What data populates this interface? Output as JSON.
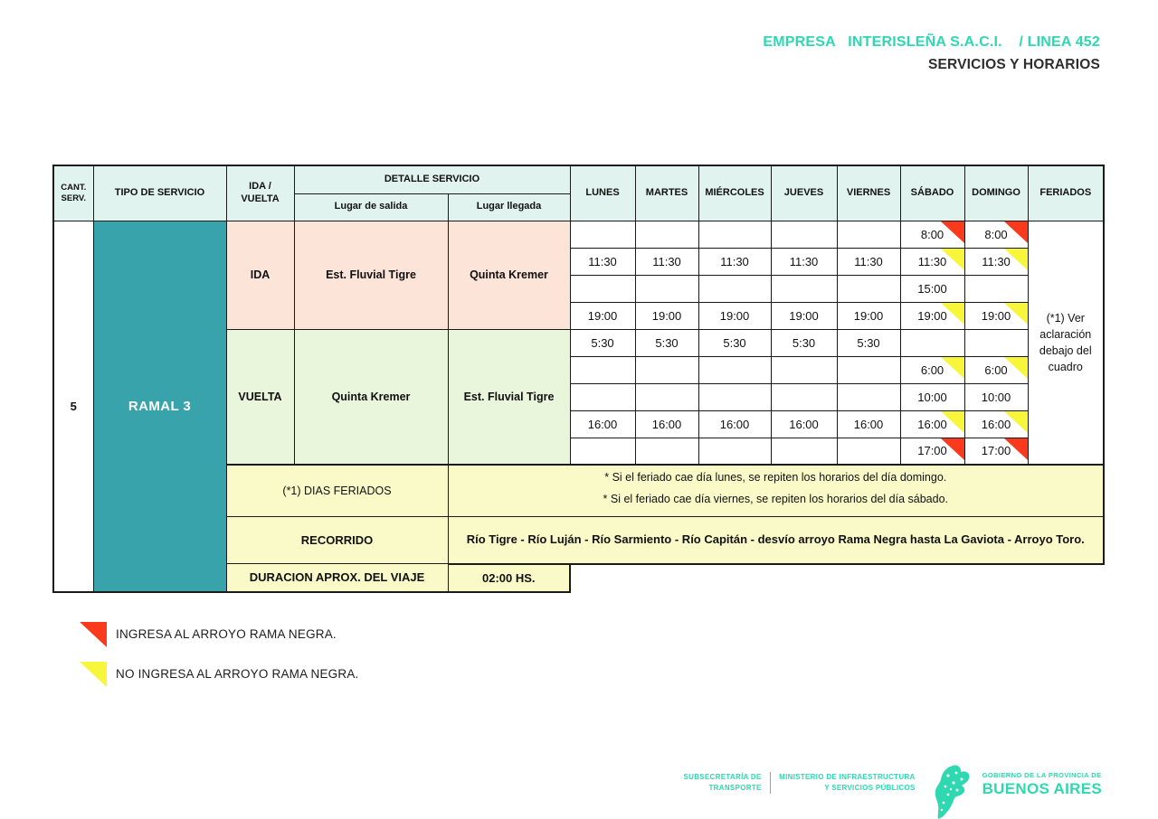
{
  "header": {
    "company_line": "EMPRESA   INTERISLEÑA S.A.C.I.    / LINEA 452",
    "subtitle": "SERVICIOS Y HORARIOS"
  },
  "colors": {
    "accent": "#2ed8b0",
    "teal_dark": "#38a3ab",
    "header_bg": "#e0f3ee",
    "ida_bg": "#fce4d8",
    "vuelta_bg": "#eaf6dc",
    "yellow_bg": "#fafac8",
    "red_flag": "#fb3a1d",
    "yellow_flag": "#f7f63a"
  },
  "table": {
    "headers": {
      "cant_line1": "CANT.",
      "cant_line2": "SERV.",
      "tipo_servicio": "TIPO DE SERVICIO",
      "ida_vuelta_line1": "IDA /",
      "ida_vuelta_line2": "VUELTA",
      "detalle_servicio": "DETALLE SERVICIO",
      "lugar_salida": "Lugar de salida",
      "lugar_llegada": "Lugar llegada",
      "days": [
        "LUNES",
        "MARTES",
        "MIÉRCOLES",
        "JUEVES",
        "VIERNES",
        "SÁBADO",
        "DOMINGO",
        "FERIADOS"
      ]
    },
    "cant_serv_value": "5",
    "ramal": "RAMAL 3",
    "ida": {
      "label": "IDA",
      "salida": "Est. Fluvial Tigre",
      "llegada": "Quinta Kremer",
      "rows": [
        {
          "times": [
            "",
            "",
            "",
            "",
            "",
            "8:00",
            "8:00"
          ],
          "flags": [
            "",
            "",
            "",
            "",
            "",
            "red",
            "red"
          ]
        },
        {
          "times": [
            "11:30",
            "11:30",
            "11:30",
            "11:30",
            "11:30",
            "11:30",
            "11:30"
          ],
          "flags": [
            "",
            "",
            "",
            "",
            "",
            "yellow",
            "yellow"
          ]
        },
        {
          "times": [
            "",
            "",
            "",
            "",
            "",
            "15:00",
            ""
          ],
          "flags": [
            "",
            "",
            "",
            "",
            "",
            "",
            ""
          ]
        },
        {
          "times": [
            "19:00",
            "19:00",
            "19:00",
            "19:00",
            "19:00",
            "19:00",
            "19:00"
          ],
          "flags": [
            "",
            "",
            "",
            "",
            "",
            "yellow",
            "yellow"
          ]
        }
      ]
    },
    "vuelta": {
      "label": "VUELTA",
      "salida": "Quinta Kremer",
      "llegada": "Est. Fluvial Tigre",
      "rows": [
        {
          "times": [
            "5:30",
            "5:30",
            "5:30",
            "5:30",
            "5:30",
            "",
            ""
          ],
          "flags": [
            "",
            "",
            "",
            "",
            "",
            "",
            ""
          ]
        },
        {
          "times": [
            "",
            "",
            "",
            "",
            "",
            "6:00",
            "6:00"
          ],
          "flags": [
            "",
            "",
            "",
            "",
            "",
            "yellow",
            "yellow"
          ]
        },
        {
          "times": [
            "",
            "",
            "",
            "",
            "",
            "10:00",
            "10:00"
          ],
          "flags": [
            "",
            "",
            "",
            "",
            "",
            "",
            ""
          ]
        },
        {
          "times": [
            "16:00",
            "16:00",
            "16:00",
            "16:00",
            "16:00",
            "16:00",
            "16:00"
          ],
          "flags": [
            "",
            "",
            "",
            "",
            "",
            "yellow",
            "yellow"
          ]
        },
        {
          "times": [
            "",
            "",
            "",
            "",
            "",
            "17:00",
            "17:00"
          ],
          "flags": [
            "",
            "",
            "",
            "",
            "",
            "red",
            "red"
          ]
        }
      ]
    },
    "feriados_note": "(*1) Ver aclaración debajo del cuadro",
    "dias_feriados": {
      "label": "(*1) DIAS FERIADOS",
      "lines": [
        "* Si el feriado cae día lunes, se repiten los horarios del día domingo.",
        "* Si el feriado cae día viernes, se repiten los horarios del día sábado."
      ]
    },
    "recorrido": {
      "label": "RECORRIDO",
      "text": "Río Tigre - Río Luján - Río Sarmiento - Río Capitán - desvío arroyo Rama Negra hasta La Gaviota - Arroyo Toro."
    },
    "duracion": {
      "label": "DURACION APROX. DEL VIAJE",
      "value": "02:00 HS."
    }
  },
  "legend": [
    {
      "flag": "red",
      "text": "INGRESA AL ARROYO RAMA NEGRA."
    },
    {
      "flag": "yellow",
      "text": "NO INGRESA AL ARROYO RAMA NEGRA."
    }
  ],
  "footer": {
    "org1_line1": "SUBSECRETARÍA DE",
    "org1_line2": "TRANSPORTE",
    "org2_line1": "MINISTERIO DE INFRAESTRUCTURA",
    "org2_line2": "Y SERVICIOS PÚBLICOS",
    "gov_line1": "GOBIERNO DE LA PROVINCIA DE",
    "gov_line2": "BUENOS AIRES"
  }
}
